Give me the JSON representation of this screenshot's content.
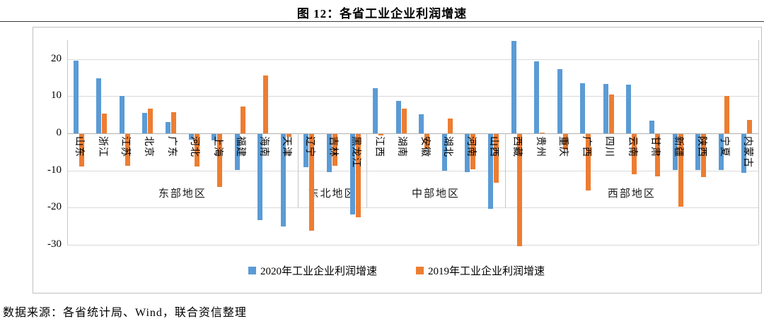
{
  "title": "图 12：各省工业企业利润增速",
  "source_note": "数据来源：各省统计局、Wind，联合资信整理",
  "chart_data": {
    "type": "bar",
    "title": "图 12：各省工业企业利润增速",
    "ylabel": "",
    "xlabel": "",
    "y_ticks": [
      20,
      10,
      0,
      -10,
      -20,
      -30
    ],
    "ylim": [
      -33,
      27
    ],
    "grid": true,
    "legend_position": "bottom",
    "series_meta": [
      {
        "name": "2020年工业企业利润增速",
        "color": "#5B9BD5"
      },
      {
        "name": "2019年工业企业利润增速",
        "color": "#ED7D31"
      }
    ],
    "groups": [
      {
        "label": "东部地区",
        "items": [
          {
            "name": "山东",
            "v2020": 19.6,
            "v2019": -8.8
          },
          {
            "name": "浙江",
            "v2020": 14.8,
            "v2019": 5.3
          },
          {
            "name": "江苏",
            "v2020": 10.1,
            "v2019": -8.6
          },
          {
            "name": "北京",
            "v2020": 5.5,
            "v2019": 6.7
          },
          {
            "name": "广东",
            "v2020": 3.1,
            "v2019": 5.7
          },
          {
            "name": "河北",
            "v2020": -1.6,
            "v2019": -8.8
          },
          {
            "name": "上海",
            "v2020": -1.7,
            "v2019": -14.3
          },
          {
            "name": "福建",
            "v2020": -9.7,
            "v2019": 7.3
          },
          {
            "name": "海南",
            "v2020": -23.2,
            "v2019": 15.5
          },
          {
            "name": "天津",
            "v2020": -24.8,
            "v2019": -0.8
          }
        ]
      },
      {
        "label": "东北地区",
        "items": [
          {
            "name": "辽宁",
            "v2020": -9.0,
            "v2019": -26.0
          },
          {
            "name": "吉林",
            "v2020": -10.3,
            "v2019": -8.5
          },
          {
            "name": "黑龙江",
            "v2020": -21.7,
            "v2019": -22.4
          }
        ]
      },
      {
        "label": "中部地区",
        "items": [
          {
            "name": "江西",
            "v2020": 12.2,
            "v2019": -0.3
          },
          {
            "name": "湖南",
            "v2020": 8.7,
            "v2019": 6.6
          },
          {
            "name": "安徽",
            "v2020": 5.1,
            "v2019": -4.0
          },
          {
            "name": "湖北",
            "v2020": -9.8,
            "v2019": 3.9
          },
          {
            "name": "河南",
            "v2020": -10.2,
            "v2019": -9.4
          },
          {
            "name": "山西",
            "v2020": -20.1,
            "v2019": -13.0
          }
        ]
      },
      {
        "label": "西部地区",
        "items": [
          {
            "name": "西藏",
            "v2020": 24.9,
            "v2019": -30.2
          },
          {
            "name": "贵州",
            "v2020": 19.4,
            "v2019": 0.2
          },
          {
            "name": "重庆",
            "v2020": 17.3,
            "v2019": -4.2
          },
          {
            "name": "广西",
            "v2020": 13.5,
            "v2019": -15.1
          },
          {
            "name": "四川",
            "v2020": 13.3,
            "v2019": 10.4
          },
          {
            "name": "云南",
            "v2020": 13.0,
            "v2019": -10.9
          },
          {
            "name": "甘肃",
            "v2020": 3.5,
            "v2019": -11.3
          },
          {
            "name": "新疆",
            "v2020": -9.7,
            "v2019": -19.5
          },
          {
            "name": "陕西",
            "v2020": -9.7,
            "v2019": -11.6
          },
          {
            "name": "宁夏",
            "v2020": -9.7,
            "v2019": 10.1
          },
          {
            "name": "内蒙古",
            "v2020": -10.5,
            "v2019": 3.7
          }
        ]
      }
    ]
  }
}
